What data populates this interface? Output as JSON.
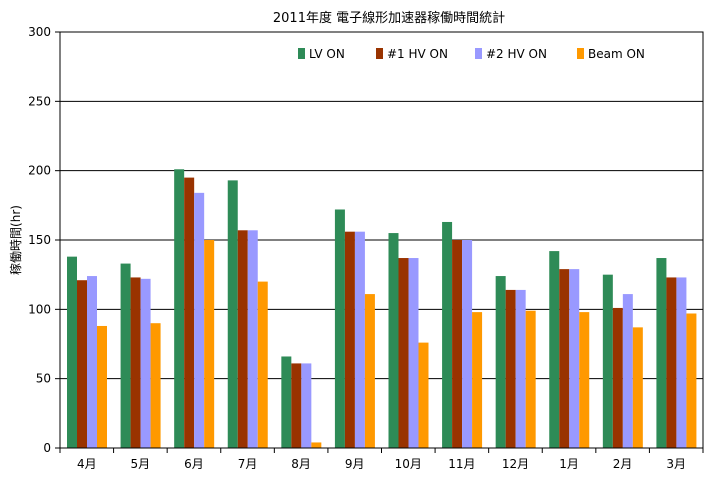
{
  "chart_data": {
    "type": "bar",
    "title": "2011年度 電子線形加速器稼働時間統計",
    "xlabel": "",
    "ylabel": "稼働時間(hr)",
    "ylim": [
      0,
      300
    ],
    "yticks": [
      0,
      50,
      100,
      150,
      200,
      250,
      300
    ],
    "grid": true,
    "legend_position": "top-right",
    "categories": [
      "4月",
      "5月",
      "6月",
      "7月",
      "8月",
      "9月",
      "10月",
      "11月",
      "12月",
      "1月",
      "2月",
      "3月"
    ],
    "series": [
      {
        "name": "LV ON",
        "color": "#2e8b57",
        "values": [
          138,
          133,
          201,
          193,
          66,
          172,
          155,
          163,
          124,
          142,
          125,
          137
        ]
      },
      {
        "name": "#1 HV ON",
        "color": "#993300",
        "values": [
          121,
          123,
          195,
          157,
          61,
          156,
          137,
          150,
          114,
          129,
          101,
          123
        ]
      },
      {
        "name": "#2 HV ON",
        "color": "#9999ff",
        "values": [
          124,
          122,
          184,
          157,
          61,
          156,
          137,
          150,
          114,
          129,
          111,
          123
        ]
      },
      {
        "name": "Beam ON",
        "color": "#ff9900",
        "values": [
          88,
          90,
          150,
          120,
          4,
          111,
          76,
          98,
          99,
          98,
          87,
          97
        ]
      }
    ]
  }
}
